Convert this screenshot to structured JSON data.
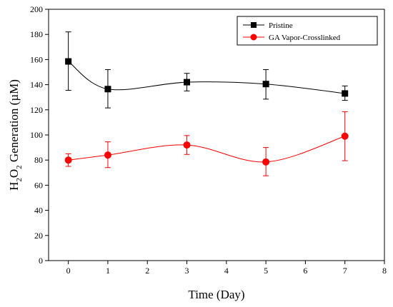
{
  "chart_data": {
    "type": "line",
    "xlabel": "Time (Day)",
    "ylabel": {
      "prefix": "H",
      "sub1": "2",
      "mid": "O",
      "sub2": "2",
      "suffix": " Generation (µM)"
    },
    "xlim": [
      -0.5,
      8
    ],
    "ylim": [
      0,
      200
    ],
    "xticks": [
      0,
      1,
      2,
      3,
      4,
      5,
      6,
      7,
      8
    ],
    "yticks": [
      0,
      20,
      40,
      60,
      80,
      100,
      120,
      140,
      160,
      180,
      200
    ],
    "grid": false,
    "legend_position": "top-right",
    "series": [
      {
        "name": "Pristine",
        "color": "#000000",
        "marker": "square",
        "x": [
          0,
          1,
          3,
          5,
          7
        ],
        "y": [
          158.5,
          136.5,
          142,
          140.5,
          133
        ],
        "err_upper": [
          182,
          152,
          149,
          152,
          139
        ],
        "err_lower": [
          135.5,
          121.5,
          135,
          128.5,
          127.5
        ]
      },
      {
        "name": "GA Vapor-Crosslinked",
        "color": "#ff0000",
        "marker": "circle",
        "x": [
          0,
          1,
          3,
          5,
          7
        ],
        "y": [
          80,
          84,
          92,
          78.5,
          99
        ],
        "err_upper": [
          85,
          94.5,
          99.5,
          90,
          118.5
        ],
        "err_lower": [
          75,
          74,
          84.5,
          67.5,
          79.5
        ]
      }
    ]
  }
}
